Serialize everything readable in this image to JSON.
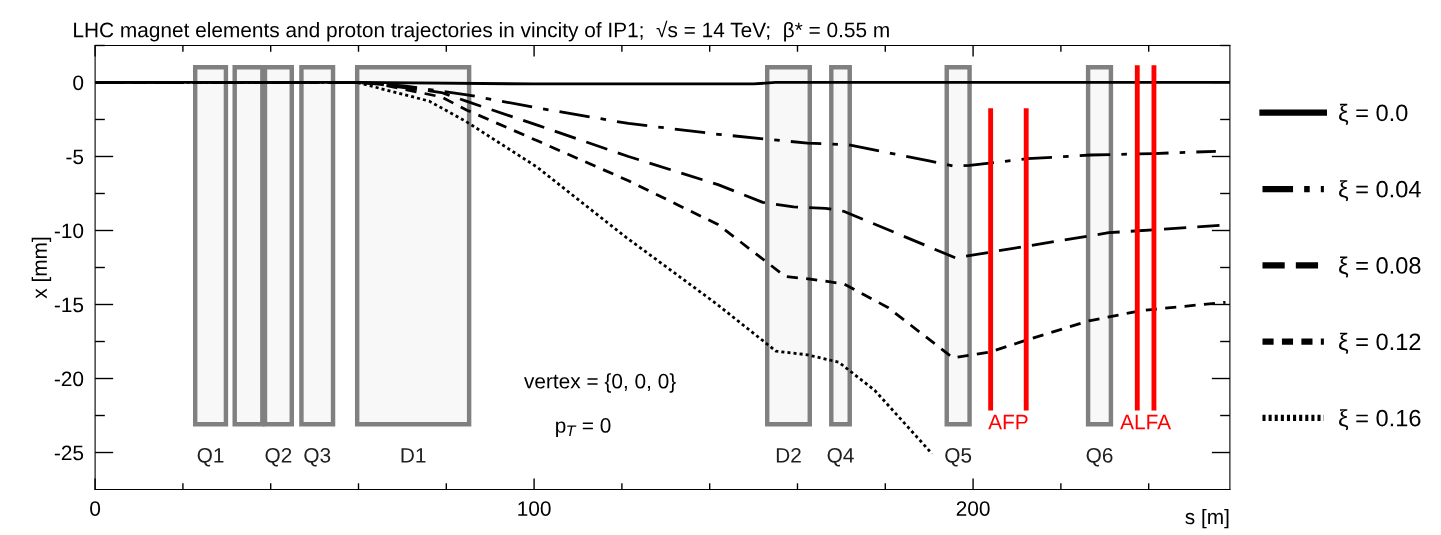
{
  "chart_data": {
    "type": "line",
    "title": "LHC magnet elements and proton trajectories in vincity of IP1;  √s = 14 TeV;  β* = 0.55 m",
    "xlabel": "s [m]",
    "ylabel": "x [mm]",
    "xlim": [
      0,
      258.5
    ],
    "ylim": [
      -27.5,
      2.5
    ],
    "xticks": [
      0,
      {
        "value": 20,
        "label": null
      },
      {
        "value": 40,
        "label": null
      },
      {
        "value": 60,
        "label": null
      },
      {
        "value": 80,
        "label": null
      },
      100,
      {
        "value": 120,
        "label": null
      },
      {
        "value": 140,
        "label": null
      },
      {
        "value": 160,
        "label": null
      },
      {
        "value": 180,
        "label": null
      },
      200,
      {
        "value": 220,
        "label": null
      },
      {
        "value": 240,
        "label": null
      }
    ],
    "yticks": [
      {
        "value": 2.5,
        "label": null
      },
      0,
      {
        "value": -2.5,
        "label": null
      },
      -5,
      {
        "value": -7.5,
        "label": null
      },
      -10,
      {
        "value": -12.5,
        "label": null
      },
      -15,
      {
        "value": -17.5,
        "label": null
      },
      -20,
      {
        "value": -22.5,
        "label": null
      },
      -25
    ],
    "grid": false,
    "legend": "right",
    "marker": "none",
    "series": [
      {
        "name": "ξ = 0.0",
        "color": "#000000",
        "line_style": "solid",
        "x": [
          0,
          60,
          100,
          150,
          155,
          258.5
        ],
        "values": [
          0,
          0,
          -0.1,
          -0.1,
          0,
          0
        ]
      },
      {
        "name": "ξ = 0.04",
        "color": "#000000",
        "line_style": "dashdot",
        "x": [
          0,
          60,
          70.4,
          84.7,
          100.9,
          121.5,
          141.9,
          162.3,
          171.5,
          190.0,
          195.6,
          199.2,
          212.4,
          226.8,
          241.1,
          255.3
        ],
        "values": [
          0,
          0,
          -0.23,
          -0.83,
          -1.73,
          -2.77,
          -3.5,
          -4.1,
          -4.2,
          -5.3,
          -5.65,
          -5.6,
          -5.15,
          -4.9,
          -4.8,
          -4.65
        ]
      },
      {
        "name": "ξ = 0.08",
        "color": "#000000",
        "line_style": "dashed",
        "x": [
          0,
          60,
          64.2,
          78.9,
          84.7,
          100.9,
          121.5,
          141.9,
          152.1,
          159.1,
          166.4,
          170.5,
          196.0,
          212.4,
          230.9,
          241.1,
          258.5
        ],
        "values": [
          0,
          0,
          -0.1,
          -0.68,
          -1.28,
          -2.9,
          -5.0,
          -6.9,
          -8.1,
          -8.4,
          -8.5,
          -8.7,
          -11.85,
          -11.05,
          -10.15,
          -9.95,
          -9.6
        ]
      },
      {
        "name": "ξ = 0.12",
        "color": "#000000",
        "line_style": "dashed",
        "x": [
          0,
          60,
          64.6,
          78.9,
          84.7,
          100.9,
          121.5,
          141.9,
          157.2,
          163.3,
          170.5,
          180.6,
          195.4,
          204.0,
          212.2,
          226.4,
          238.6,
          257.5
        ],
        "values": [
          0,
          0,
          -0.1,
          -0.98,
          -1.87,
          -3.96,
          -6.64,
          -9.6,
          -13.1,
          -13.3,
          -13.6,
          -15.2,
          -18.6,
          -18.2,
          -17.4,
          -16.1,
          -15.4,
          -14.85
        ]
      },
      {
        "name": "ξ = 0.16",
        "color": "#000000",
        "line_style": "dotted",
        "x": [
          0,
          59.7,
          76.1,
          84.3,
          100.6,
          120.9,
          141.3,
          151.5,
          155.1,
          162.3,
          169.4,
          177.6,
          189.8,
          190.6
        ],
        "values": [
          0,
          0,
          -1.26,
          -2.6,
          -5.7,
          -10.45,
          -14.9,
          -17.3,
          -18.15,
          -18.4,
          -18.9,
          -20.8,
          -24.8,
          -25.1
        ]
      },
      {
        "color": "#ff0000",
        "line_style": "solid",
        "x": [
          204.0,
          204.0,
          208.0,
          212.1,
          212.1
        ],
        "values": [
          -1.9,
          -22.0,
          null,
          -1.9,
          -22.0
        ]
      },
      {
        "color": "#ff0000",
        "line_style": "solid",
        "x": [
          237.4,
          237.4,
          239.3,
          241.2,
          241.2
        ],
        "values": [
          1.0,
          -22.0,
          null,
          1.0,
          -22.0
        ]
      }
    ],
    "bands": [
      {
        "axis": "x",
        "from": 22.8,
        "to": 29.8,
        "label": "Q1",
        "color": "#808080"
      },
      {
        "axis": "x",
        "from": 31.8,
        "to": 38.1,
        "label": null,
        "color": "#808080"
      },
      {
        "axis": "x",
        "from": 38.7,
        "to": 44.8,
        "label": "Q2",
        "color": "#808080"
      },
      {
        "axis": "x",
        "from": 47.0,
        "to": 54.2,
        "label": "Q3",
        "color": "#808080"
      },
      {
        "axis": "x",
        "from": 59.7,
        "to": 85.2,
        "label": "D1",
        "color": "#808080"
      },
      {
        "axis": "x",
        "from": 153.1,
        "to": 162.8,
        "label": "D2",
        "color": "#808080"
      },
      {
        "axis": "x",
        "from": 167.7,
        "to": 171.9,
        "label": "Q4",
        "color": "#808080"
      },
      {
        "axis": "x",
        "from": 194.0,
        "to": 199.2,
        "label": "Q5",
        "color": "#808080"
      },
      {
        "axis": "x",
        "from": 226.2,
        "to": 231.4,
        "label": "Q6",
        "color": "#808080"
      }
    ],
    "annotations": [
      "vertex = {0, 0, 0}",
      "p$_{T}$ = 0",
      "AFP",
      "ALFA"
    ]
  }
}
